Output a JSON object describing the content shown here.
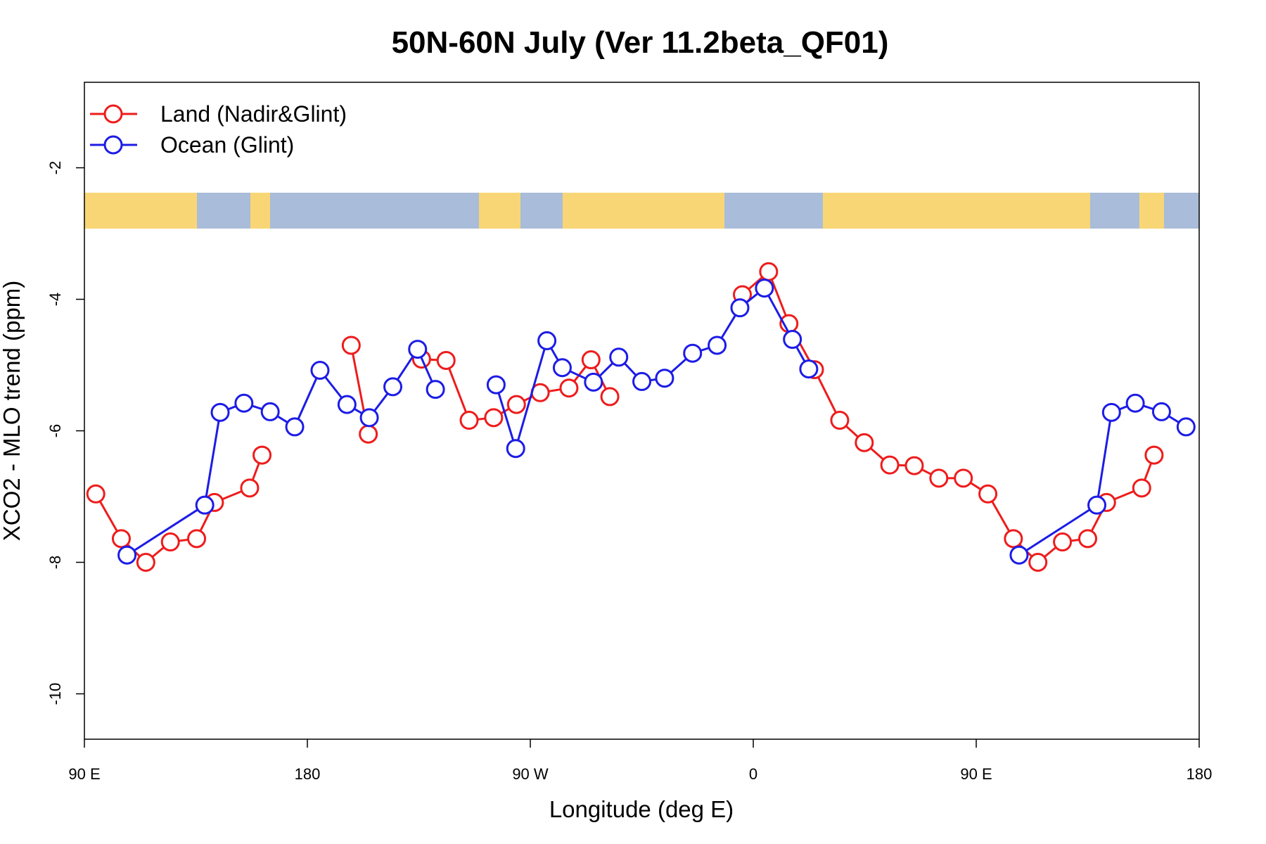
{
  "chart_data": {
    "type": "line",
    "title": "50N-60N July (Ver 11.2beta_QF01)",
    "x_label": "Longitude (deg E)",
    "y_label": "XCO2 - MLO trend (ppm)",
    "xlim": [
      90,
      540
    ],
    "ylim": [
      -10.69,
      -0.7
    ],
    "xticks": [
      {
        "value": 90,
        "label": "90 E"
      },
      180,
      {
        "value": 270,
        "label": "90 W"
      },
      {
        "value": 360,
        "label": "0"
      },
      {
        "value": 450,
        "label": "90 E"
      },
      {
        "value": 540,
        "label": "180"
      }
    ],
    "yticks": [
      -2,
      -4,
      -6,
      -8,
      -10
    ],
    "grid": false,
    "legend": "top-left",
    "series": [
      {
        "name": "Land (Nadir&Glint)",
        "color": "#ee1c1c",
        "x": [
          94.6,
          104.9,
          114.8,
          124.7,
          135.3,
          142.5,
          156.7,
          161.7,
          null,
          197.7,
          204.6,
          null,
          226.1,
          236.0,
          245.3,
          255.2,
          264.4,
          274.0,
          285.6,
          294.5,
          302.1,
          null,
          355.6,
          366.2,
          374.4,
          384.7,
          394.9,
          404.8,
          415.1,
          425.0,
          434.9,
          444.8,
          454.7,
          465.0,
          474.9,
          484.8,
          495.0,
          502.6,
          516.8,
          521.8
        ],
        "values": [
          -6.96,
          -7.64,
          -8.0,
          -7.69,
          -7.64,
          -7.09,
          -6.87,
          -6.37,
          null,
          -4.7,
          -6.05,
          null,
          -4.91,
          -4.93,
          -5.84,
          -5.8,
          -5.6,
          -5.42,
          -5.35,
          -4.92,
          -5.48,
          null,
          -3.93,
          -3.58,
          -4.37,
          -5.07,
          -5.84,
          -6.18,
          -6.52,
          -6.53,
          -6.72,
          -6.72,
          -6.96,
          -7.64,
          -8.0,
          -7.69,
          -7.64,
          -7.09,
          -6.87,
          -6.37
        ]
      },
      {
        "name": "Ocean (Glint)",
        "color": "#1c1ce6",
        "x": [
          107.2,
          138.6,
          144.8,
          154.4,
          165.0,
          174.9,
          185.1,
          196.0,
          205.0,
          214.5,
          224.5,
          231.7,
          null,
          256.2,
          264.1,
          276.7,
          282.9,
          295.5,
          305.7,
          315.0,
          324.2,
          335.5,
          345.4,
          354.6,
          364.5,
          375.8,
          382.4,
          null,
          467.3,
          498.7,
          504.6,
          514.2,
          524.8,
          534.7
        ],
        "values": [
          -7.89,
          -7.13,
          -5.72,
          -5.58,
          -5.71,
          -5.94,
          -5.08,
          -5.6,
          -5.8,
          -5.33,
          -4.76,
          -5.37,
          null,
          -5.3,
          -6.27,
          -4.63,
          -5.04,
          -5.26,
          -4.88,
          -5.25,
          -5.2,
          -4.82,
          -4.7,
          -4.13,
          -3.83,
          -4.61,
          -5.06,
          null,
          -7.89,
          -7.13,
          -5.72,
          -5.58,
          -5.71,
          -5.94
        ]
      }
    ]
  }
}
